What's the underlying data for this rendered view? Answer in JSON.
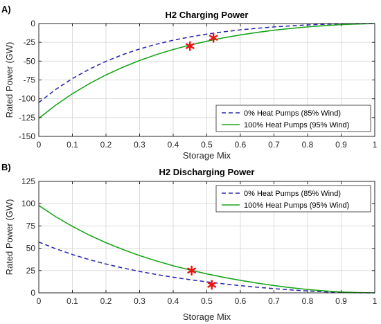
{
  "chart_data": [
    {
      "type": "line",
      "panel_label": "A)",
      "title": "H2 Charging Power",
      "xlabel": "Storage Mix",
      "ylabel": "Rated Power (GW)",
      "xlim": [
        0,
        1
      ],
      "ylim": [
        -150,
        0
      ],
      "xticks": [
        "0",
        "0.1",
        "0.2",
        "0.3",
        "0.4",
        "0.5",
        "0.6",
        "0.7",
        "0.8",
        "0.9",
        "1"
      ],
      "yticks": [
        "-150",
        "-125",
        "-100",
        "-75",
        "-50",
        "-25",
        "0"
      ],
      "grid": true,
      "legend_position": "bottom-right",
      "series": [
        {
          "name": "0% Heat Pumps (85% Wind)",
          "style": "dashed",
          "color": "#2b2bb0",
          "x": [
            0,
            0.05,
            0.1,
            0.15,
            0.2,
            0.25,
            0.3,
            0.35,
            0.4,
            0.45,
            0.5,
            0.55,
            0.6,
            0.65,
            0.7,
            0.75,
            0.8,
            0.85,
            0.9,
            0.95,
            1
          ],
          "y": [
            -105,
            -87.7,
            -73.1,
            -60.7,
            -50.2,
            -41.3,
            -33.8,
            -27.5,
            -22.2,
            -17.8,
            -14.1,
            -11.0,
            -8.4,
            -6.3,
            -4.5,
            -3.1,
            -1.9,
            -1.0,
            -0.5,
            -0.1,
            0
          ]
        },
        {
          "name": "100% Heat Pumps (95% Wind)",
          "style": "solid",
          "color": "#1aa51a",
          "x": [
            0,
            0.05,
            0.1,
            0.15,
            0.2,
            0.25,
            0.3,
            0.35,
            0.4,
            0.45,
            0.5,
            0.55,
            0.6,
            0.65,
            0.7,
            0.75,
            0.8,
            0.85,
            0.9,
            0.95,
            1
          ],
          "y": [
            -126,
            -108.6,
            -93.3,
            -80.0,
            -68.3,
            -58.1,
            -49.1,
            -41.3,
            -34.5,
            -28.6,
            -23.5,
            -19.0,
            -15.1,
            -11.8,
            -8.9,
            -6.5,
            -4.5,
            -2.8,
            -1.5,
            -0.6,
            0
          ]
        }
      ],
      "markers": [
        {
          "x": 0.45,
          "y": -30,
          "color": "#ee1111"
        },
        {
          "x": 0.52,
          "y": -19,
          "color": "#ee1111"
        }
      ]
    },
    {
      "type": "line",
      "panel_label": "B)",
      "title": "H2 Discharging Power",
      "xlabel": "Storage Mix",
      "ylabel": "Rated Power (GW)",
      "xlim": [
        0,
        1
      ],
      "ylim": [
        0,
        125
      ],
      "xticks": [
        "0",
        "0.1",
        "0.2",
        "0.3",
        "0.4",
        "0.5",
        "0.6",
        "0.7",
        "0.8",
        "0.9",
        "1"
      ],
      "yticks": [
        "0",
        "25",
        "50",
        "75",
        "100",
        "125"
      ],
      "grid": true,
      "legend_position": "top-right",
      "series": [
        {
          "name": "0% Heat Pumps (85% Wind)",
          "style": "dashed",
          "color": "#2b2bb0",
          "x": [
            0,
            0.05,
            0.1,
            0.15,
            0.2,
            0.25,
            0.3,
            0.35,
            0.4,
            0.45,
            0.5,
            0.55,
            0.6,
            0.65,
            0.7,
            0.75,
            0.8,
            0.85,
            0.9,
            0.95,
            1
          ],
          "y": [
            57,
            49.5,
            43.0,
            37.3,
            32.3,
            27.9,
            24.0,
            20.6,
            17.5,
            14.8,
            12.3,
            10.1,
            8.1,
            6.3,
            4.7,
            3.3,
            2.1,
            1.2,
            0.5,
            0.1,
            0
          ]
        },
        {
          "name": "100% Heat Pumps (95% Wind)",
          "style": "solid",
          "color": "#1aa51a",
          "x": [
            0,
            0.05,
            0.1,
            0.15,
            0.2,
            0.25,
            0.3,
            0.35,
            0.4,
            0.45,
            0.5,
            0.55,
            0.6,
            0.65,
            0.7,
            0.75,
            0.8,
            0.85,
            0.9,
            0.95,
            1
          ],
          "y": [
            98,
            85.5,
            74.5,
            64.8,
            56.2,
            48.6,
            41.8,
            35.8,
            30.4,
            25.6,
            21.3,
            17.4,
            14.0,
            10.9,
            8.2,
            5.8,
            3.8,
            2.2,
            1.0,
            0.3,
            0
          ]
        }
      ],
      "markers": [
        {
          "x": 0.455,
          "y": 25,
          "color": "#ee1111"
        },
        {
          "x": 0.515,
          "y": 9,
          "color": "#ee1111"
        }
      ]
    }
  ]
}
